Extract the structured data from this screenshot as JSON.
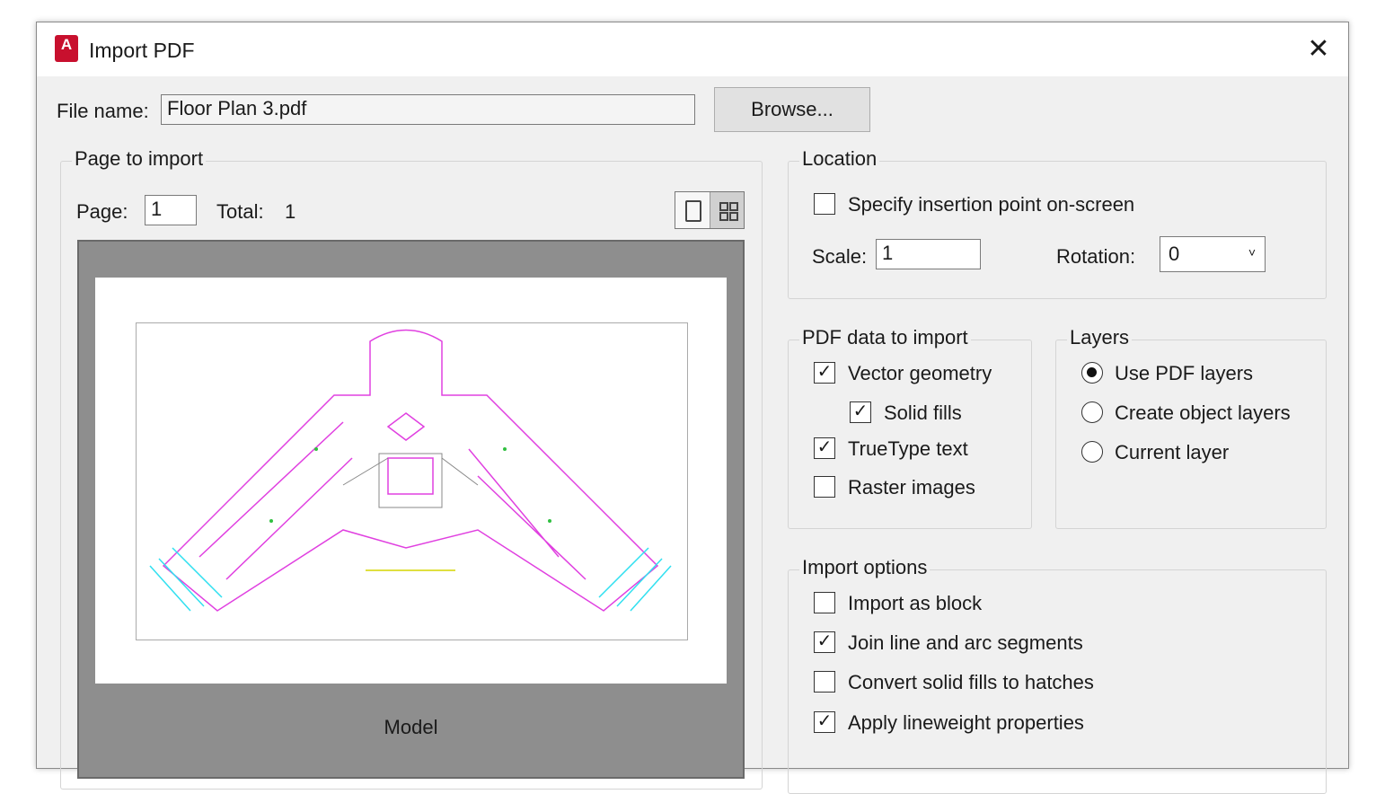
{
  "window": {
    "title": "Import PDF",
    "logo_letter": "A",
    "close_icon": "close-icon"
  },
  "file": {
    "label": "File name:",
    "value": "Floor Plan 3.pdf",
    "browse": "Browse..."
  },
  "page_group": {
    "title": "Page to import",
    "page_label": "Page:",
    "page_value": "1",
    "total_label": "Total:",
    "total_value": "1",
    "preview_caption": "Model",
    "view_modes": [
      "single-page-icon",
      "grid-pages-icon"
    ]
  },
  "location": {
    "title": "Location",
    "specify_label": "Specify insertion point on-screen",
    "specify_checked": false,
    "scale_label": "Scale:",
    "scale_value": "1",
    "rotation_label": "Rotation:",
    "rotation_value": "0"
  },
  "pdf_data": {
    "title": "PDF data to import",
    "items": [
      {
        "label": "Vector geometry",
        "checked": true
      },
      {
        "label": "Solid fills",
        "checked": true
      },
      {
        "label": "TrueType text",
        "checked": true
      },
      {
        "label": "Raster images",
        "checked": false
      }
    ]
  },
  "layers": {
    "title": "Layers",
    "options": [
      {
        "label": "Use PDF layers",
        "selected": true
      },
      {
        "label": "Create object layers",
        "selected": false
      },
      {
        "label": "Current layer",
        "selected": false
      }
    ]
  },
  "import_options": {
    "title": "Import options",
    "items": [
      {
        "label": "Import as block",
        "checked": false
      },
      {
        "label": "Join line and arc segments",
        "checked": true
      },
      {
        "label": "Convert solid fills to hatches",
        "checked": false
      },
      {
        "label": "Apply lineweight properties",
        "checked": true
      }
    ]
  }
}
